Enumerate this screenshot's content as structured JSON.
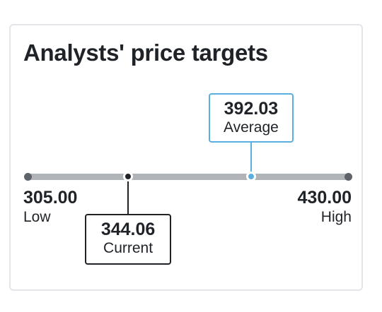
{
  "card": {
    "title": "Analysts' price targets"
  },
  "range": {
    "low": 305.0,
    "high": 430.0
  },
  "low": {
    "value": "305.00",
    "label": "Low"
  },
  "high": {
    "value": "430.00",
    "label": "High"
  },
  "current": {
    "value": "344.06",
    "label": "Current",
    "numeric": 344.06
  },
  "average": {
    "value": "392.03",
    "label": "Average",
    "numeric": 392.03
  },
  "colors": {
    "track": "#b0b4b9",
    "current": "#1f2328",
    "average": "#5aaee0",
    "border": "#e3e5e8"
  }
}
